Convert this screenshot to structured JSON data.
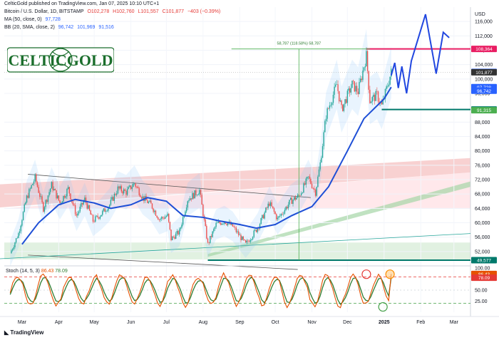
{
  "published": "CelticGold published on TradingView.com, Jan 07, 2025 10:10 UTC+1",
  "symbol_line": {
    "symbol": "Bitcoin / U.S. Dollar, 1D, BITSTAMP",
    "o": "O102,278",
    "h": "H102,760",
    "l": "L101,557",
    "c": "C101,877",
    "chg": "−403 (−0.39%)"
  },
  "ma_line": {
    "label": "MA (50, close, 0)",
    "value": "97,728"
  },
  "bb_line": {
    "label": "BB (20, SMA, close, 2)",
    "v1": "96,742",
    "v2": "101,969",
    "v3": "91,516"
  },
  "logo_text": "CELTICGOLD",
  "footer_brand": "TradingView",
  "currency": "USD",
  "annotation": "58,787 (118.58%) 58,787",
  "stoch_label": "Stoch (14, 5, 3)",
  "stoch_values": [
    "86.43",
    "78.09"
  ],
  "colors": {
    "candle_up": "#26a69a",
    "candle_down": "#ef5350",
    "ma": "#1e4fd6",
    "forecast": "#2147e0",
    "resistance": "#e91e63",
    "support": "#00796b",
    "stoch_k": "#e65100",
    "stoch_d": "#2e7d32"
  },
  "chart_data": {
    "type": "candlestick",
    "y_axis_ticks": [
      116000,
      112000,
      108000,
      104000,
      100000,
      96000,
      88000,
      84000,
      80000,
      76000,
      72000,
      68000,
      64000,
      60000,
      56000,
      52000
    ],
    "y_axis_labels": [
      "116,000",
      "112,000",
      "108,000",
      "104,000",
      "100,000",
      "96,000",
      "88,000",
      "84,000",
      "80,000",
      "76,000",
      "72,000",
      "68,000",
      "64,000",
      "60,000",
      "56,000",
      "52,000"
    ],
    "ylim": [
      48000,
      120000
    ],
    "x_axis_labels": [
      "Mar",
      "Apr",
      "May",
      "Jun",
      "Jul",
      "Aug",
      "Sep",
      "Oct",
      "Nov",
      "Dec",
      "2025",
      "Feb",
      "Mar"
    ],
    "close_path": [
      [
        "2024-02-20",
        51500
      ],
      [
        "2024-02-27",
        57000
      ],
      [
        "2024-03-05",
        67000
      ],
      [
        "2024-03-12",
        72500
      ],
      [
        "2024-03-19",
        64000
      ],
      [
        "2024-03-26",
        70500
      ],
      [
        "2024-04-02",
        65500
      ],
      [
        "2024-04-09",
        69500
      ],
      [
        "2024-04-16",
        62000
      ],
      [
        "2024-04-23",
        66500
      ],
      [
        "2024-04-30",
        60500
      ],
      [
        "2024-05-07",
        62500
      ],
      [
        "2024-05-14",
        65000
      ],
      [
        "2024-05-21",
        69500
      ],
      [
        "2024-05-28",
        68500
      ],
      [
        "2024-06-04",
        71000
      ],
      [
        "2024-06-11",
        67000
      ],
      [
        "2024-06-18",
        65000
      ],
      [
        "2024-06-25",
        61000
      ],
      [
        "2024-07-02",
        62000
      ],
      [
        "2024-07-05",
        55500
      ],
      [
        "2024-07-12",
        57500
      ],
      [
        "2024-07-19",
        66500
      ],
      [
        "2024-07-29",
        69000
      ],
      [
        "2024-08-05",
        54000
      ],
      [
        "2024-08-12",
        59500
      ],
      [
        "2024-08-19",
        60500
      ],
      [
        "2024-08-26",
        59000
      ],
      [
        "2024-09-06",
        54000
      ],
      [
        "2024-09-16",
        58500
      ],
      [
        "2024-09-26",
        65500
      ],
      [
        "2024-10-03",
        61000
      ],
      [
        "2024-10-14",
        66000
      ],
      [
        "2024-10-21",
        67500
      ],
      [
        "2024-10-29",
        72500
      ],
      [
        "2024-11-04",
        68500
      ],
      [
        "2024-11-08",
        76500
      ],
      [
        "2024-11-13",
        90000
      ],
      [
        "2024-11-22",
        98500
      ],
      [
        "2024-11-26",
        91500
      ],
      [
        "2024-12-05",
        98500
      ],
      [
        "2024-12-10",
        96500
      ],
      [
        "2024-12-17",
        106500
      ],
      [
        "2024-12-20",
        94000
      ],
      [
        "2024-12-26",
        95500
      ],
      [
        "2024-12-30",
        92500
      ],
      [
        "2025-01-07",
        101877
      ]
    ],
    "series": [
      {
        "name": "MA (50, close, 0)",
        "values": [
          [
            "2024-03-01",
            54000
          ],
          [
            "2024-03-15",
            60000
          ],
          [
            "2024-04-01",
            65000
          ],
          [
            "2024-04-15",
            66500
          ],
          [
            "2024-05-01",
            65500
          ],
          [
            "2024-05-15",
            64000
          ],
          [
            "2024-06-01",
            65000
          ],
          [
            "2024-06-15",
            67000
          ],
          [
            "2024-07-01",
            66000
          ],
          [
            "2024-07-15",
            62000
          ],
          [
            "2024-08-01",
            61500
          ],
          [
            "2024-08-15",
            60500
          ],
          [
            "2024-09-01",
            59500
          ],
          [
            "2024-09-15",
            58500
          ],
          [
            "2024-10-01",
            59500
          ],
          [
            "2024-10-15",
            62000
          ],
          [
            "2024-11-01",
            64500
          ],
          [
            "2024-11-15",
            70000
          ],
          [
            "2024-12-01",
            80000
          ],
          [
            "2024-12-15",
            89000
          ],
          [
            "2025-01-01",
            94500
          ],
          [
            "2025-01-07",
            97728
          ]
        ]
      },
      {
        "name": "BB (20, SMA, close, 2)",
        "values": [
          [
            "2025-01-07",
            96742
          ]
        ]
      }
    ],
    "forecast_path": [
      [
        "2025-01-07",
        101000
      ],
      [
        "2025-01-10",
        104500
      ],
      [
        "2025-01-13",
        97500
      ],
      [
        "2025-01-16",
        103500
      ],
      [
        "2025-01-20",
        96000
      ],
      [
        "2025-01-24",
        105000
      ],
      [
        "2025-02-05",
        118000
      ],
      [
        "2025-02-14",
        101500
      ],
      [
        "2025-02-20",
        113000
      ],
      [
        "2025-02-25",
        111500
      ]
    ],
    "levels": [
      {
        "price": 108364,
        "label": "108,364",
        "color": "#e91e63",
        "from": "2024-12-17"
      },
      {
        "price": 91516,
        "label": "91,516",
        "color": "#00796b",
        "from": "2024-12-30"
      },
      {
        "price": 91315,
        "label": "91,315",
        "color": "#4caf50",
        "from": null
      },
      {
        "price": 49577,
        "label": "49,577",
        "color": "#00796b",
        "from": "2024-08-05"
      }
    ],
    "price_labels": [
      {
        "price": 101969,
        "label": "101,969",
        "color": "#2962ff"
      },
      {
        "price": 101877,
        "label": "101,877",
        "color": "#333333"
      },
      {
        "price": 97728,
        "label": "97,728",
        "color": "#2962ff"
      },
      {
        "price": 96742,
        "label": "96,742",
        "color": "#2962ff"
      }
    ],
    "measure": {
      "from": [
        "2024-10-21",
        49577
      ],
      "to": [
        "2024-10-21",
        108364
      ],
      "text": "58,787 (118.58%) 58,787"
    },
    "channel": {
      "upper": [
        [
          "2024-02-01",
          70500
        ],
        [
          "2025-03-15",
          78000
        ]
      ],
      "lower": [
        [
          "2024-02-01",
          64000
        ],
        [
          "2025-03-15",
          74000
        ]
      ]
    },
    "trend_lines": [
      {
        "name": "upper-triangle",
        "points": [
          [
            "2024-03-06",
            73500
          ],
          [
            "2024-10-31",
            67000
          ]
        ]
      },
      {
        "name": "lower-triangle",
        "points": [
          [
            "2024-03-06",
            51000
          ],
          [
            "2024-10-20",
            47000
          ]
        ]
      },
      {
        "name": "long-support",
        "points": [
          [
            "2024-02-01",
            49800
          ],
          [
            "2025-03-15",
            57000
          ]
        ]
      }
    ],
    "stoch": {
      "ylim": [
        0,
        100
      ],
      "ticks": [
        100,
        75,
        50,
        25
      ],
      "tick_labels": [
        "100.00",
        "75.00",
        "50.00",
        "25.00"
      ],
      "k_value": 86.43,
      "d_value": 78.09,
      "overbought": 80,
      "oversold": 20
    }
  }
}
